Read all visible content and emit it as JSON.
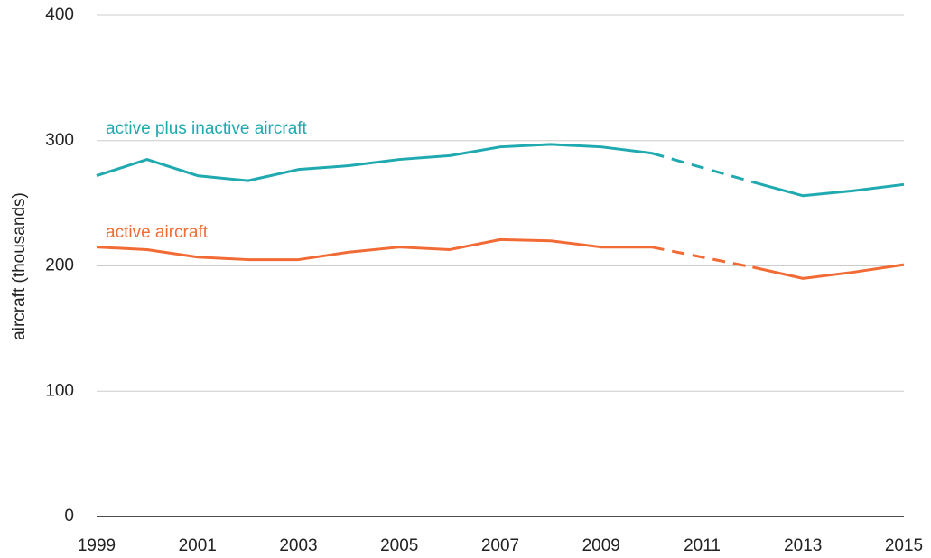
{
  "chart_data": {
    "type": "line",
    "y_label": "aircraft (thousands)",
    "x": [
      1999,
      2000,
      2001,
      2002,
      2003,
      2004,
      2005,
      2006,
      2007,
      2008,
      2009,
      2010,
      2011,
      2012,
      2013,
      2014,
      2015
    ],
    "series": [
      {
        "name": "active plus inactive aircraft",
        "color": "#1fa9b0",
        "values": [
          272,
          285,
          272,
          268,
          277,
          280,
          285,
          288,
          295,
          297,
          295,
          290,
          null,
          267,
          256,
          260,
          265
        ]
      },
      {
        "name": "active aircraft",
        "color": "#f26b35",
        "values": [
          215,
          213,
          207,
          205,
          205,
          211,
          215,
          213,
          221,
          220,
          215,
          215,
          null,
          199,
          190,
          195,
          201
        ]
      }
    ],
    "xlim": [
      1999,
      2015
    ],
    "xticks": [
      1999,
      2001,
      2003,
      2005,
      2007,
      2009,
      2011,
      2013,
      2015
    ],
    "ylim": [
      0,
      400
    ],
    "yticks": [
      0,
      100,
      200,
      300,
      400
    ],
    "grid": true
  }
}
